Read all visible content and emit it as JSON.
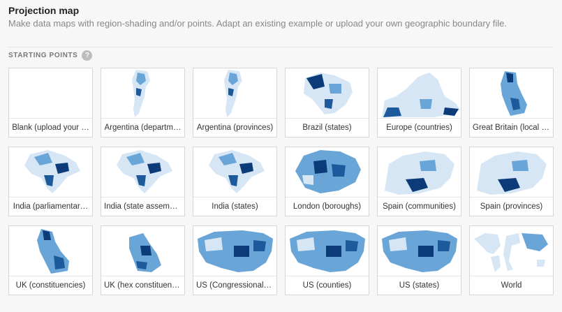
{
  "header": {
    "title": "Projection map",
    "subtitle": "Make data maps with region-shading and/or points. Adapt an existing example or upload your own geographic boundary file."
  },
  "section": {
    "label": "STARTING POINTS",
    "help_icon": "?"
  },
  "colors": {
    "light": "#d6e6f5",
    "mid": "#6aa5d8",
    "dark": "#1c5a9c",
    "darkest": "#0b3b78"
  },
  "cards": [
    {
      "label": "Blank (upload your …",
      "icon": "blank-map"
    },
    {
      "label": "Argentina (departm…",
      "icon": "argentina-map"
    },
    {
      "label": "Argentina (provinces)",
      "icon": "argentina-map"
    },
    {
      "label": "Brazil (states)",
      "icon": "brazil-map"
    },
    {
      "label": "Europe (countries)",
      "icon": "europe-map"
    },
    {
      "label": "Great Britain (local a…",
      "icon": "great-britain-map"
    },
    {
      "label": "India (parliamentar…",
      "icon": "india-map"
    },
    {
      "label": "India (state assembl…",
      "icon": "india-map"
    },
    {
      "label": "India (states)",
      "icon": "india-map"
    },
    {
      "label": "London (boroughs)",
      "icon": "london-map"
    },
    {
      "label": "Spain (communities)",
      "icon": "spain-map"
    },
    {
      "label": "Spain (provinces)",
      "icon": "spain-map"
    },
    {
      "label": "UK (constituencies)",
      "icon": "uk-map"
    },
    {
      "label": "UK (hex constituenc…",
      "icon": "uk-hex-map"
    },
    {
      "label": "US (Congressional d…",
      "icon": "us-map"
    },
    {
      "label": "US (counties)",
      "icon": "us-map"
    },
    {
      "label": "US (states)",
      "icon": "us-map"
    },
    {
      "label": "World",
      "icon": "world-map"
    }
  ]
}
